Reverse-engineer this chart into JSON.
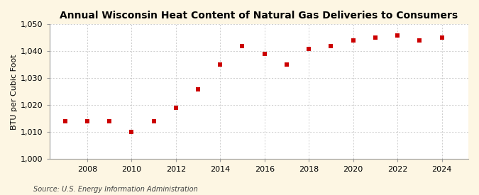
{
  "title": "Annual Wisconsin Heat Content of Natural Gas Deliveries to Consumers",
  "ylabel": "BTU per Cubic Foot",
  "source": "Source: U.S. Energy Information Administration",
  "background_color": "#fdf6e3",
  "plot_bg_color": "#ffffff",
  "grid_color": "#bbbbbb",
  "marker_color": "#cc0000",
  "years": [
    2007,
    2008,
    2009,
    2010,
    2011,
    2012,
    2013,
    2014,
    2015,
    2016,
    2017,
    2018,
    2019,
    2020,
    2021,
    2022,
    2023,
    2024
  ],
  "values": [
    1014,
    1014,
    1014,
    1010,
    1014,
    1019,
    1026,
    1035,
    1042,
    1039,
    1035,
    1041,
    1042,
    1044,
    1045,
    1046,
    1044,
    1045
  ],
  "ylim": [
    1000,
    1050
  ],
  "yticks": [
    1000,
    1010,
    1020,
    1030,
    1040,
    1050
  ],
  "xlim": [
    2006.3,
    2025.2
  ],
  "xticks": [
    2008,
    2010,
    2012,
    2014,
    2016,
    2018,
    2020,
    2022,
    2024
  ],
  "title_fontsize": 10,
  "axis_fontsize": 8,
  "tick_fontsize": 8,
  "source_fontsize": 7,
  "marker_size": 4
}
